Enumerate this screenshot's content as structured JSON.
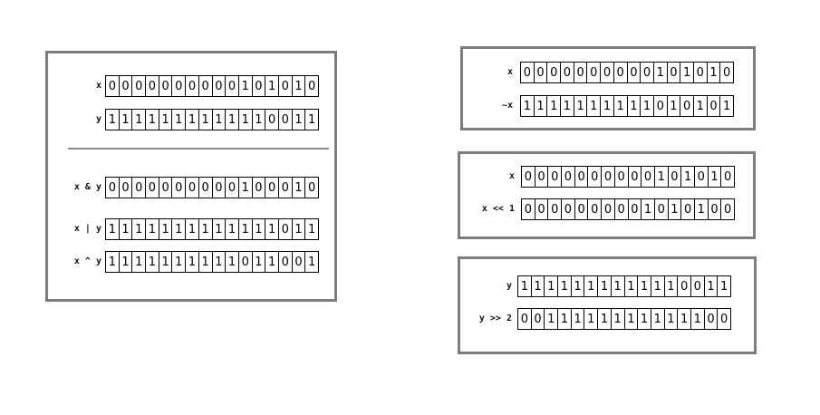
{
  "panels": [
    {
      "rows": [
        {
          "label": "x",
          "bits": "0000000000101010"
        },
        {
          "label": "y",
          "bits": "1111111111110011"
        },
        {
          "label": "x & y",
          "bits": "0000000000100010"
        },
        {
          "label": "x | y",
          "bits": "1111111111111011"
        },
        {
          "label": "x ^ y",
          "bits": "1111111111011001"
        }
      ]
    },
    {
      "rows": [
        {
          "label": "x",
          "bits": "0000000000101010"
        },
        {
          "label": "~x",
          "bits": "1111111111010101"
        }
      ]
    },
    {
      "rows": [
        {
          "label": "x",
          "bits": "0000000000101010"
        },
        {
          "label": "x << 1",
          "bits": "0000000001010100"
        }
      ]
    },
    {
      "rows": [
        {
          "label": "y",
          "bits": "1111111111110011"
        },
        {
          "label": "y >> 2",
          "bits": "0011111111111100"
        }
      ]
    }
  ]
}
